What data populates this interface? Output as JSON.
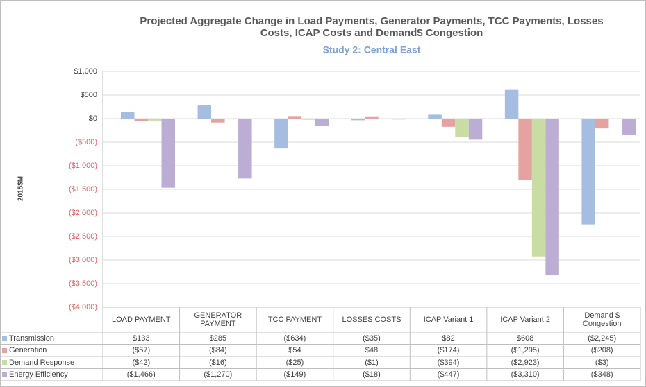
{
  "chart_data": {
    "type": "bar",
    "title": "Projected Aggregate Change in Load Payments, Generator Payments, TCC Payments, Losses Costs, ICAP Costs and Demand$ Congestion",
    "subtitle": "Study 2: Central East",
    "y_label": "2015$M",
    "categories": [
      "LOAD PAYMENT",
      "GENERATOR PAYMENT",
      "TCC PAYMENT",
      "LOSSES COSTS",
      "ICAP Variant 1",
      "ICAP Variant 2",
      "Demand $ Congestion"
    ],
    "series": [
      {
        "name": "Transmission",
        "color": "#a5bde0",
        "values": [
          133,
          285,
          -634,
          -35,
          82,
          608,
          -2245
        ],
        "value_labels": [
          "$133",
          "$285",
          "($634)",
          "($35)",
          "$82",
          "$608",
          "($2,245)"
        ]
      },
      {
        "name": "Generation",
        "color": "#e6a2a1",
        "values": [
          -57,
          -84,
          54,
          48,
          -174,
          -1295,
          -208
        ],
        "value_labels": [
          "($57)",
          "($84)",
          "$54",
          "$48",
          "($174)",
          "($1,295)",
          "($208)"
        ]
      },
      {
        "name": "Demand Response",
        "color": "#c8dca3",
        "values": [
          -42,
          -16,
          -25,
          -1,
          -394,
          -2923,
          -3
        ],
        "value_labels": [
          "($42)",
          "($16)",
          "($25)",
          "($1)",
          "($394)",
          "($2,923)",
          "($3)"
        ]
      },
      {
        "name": "Energy Efficiency",
        "color": "#bcadd4",
        "values": [
          -1466,
          -1270,
          -149,
          -18,
          -447,
          -3310,
          -348
        ],
        "value_labels": [
          "($1,466)",
          "($1,270)",
          "($149)",
          "($18)",
          "($447)",
          "($3,310)",
          "($348)"
        ]
      }
    ],
    "ylim": [
      -4000,
      1000
    ],
    "yticks": [
      {
        "value": 1000,
        "label": "$1,000"
      },
      {
        "value": 500,
        "label": "$500"
      },
      {
        "value": 0,
        "label": "$0"
      },
      {
        "value": -500,
        "label": "($500)"
      },
      {
        "value": -1000,
        "label": "($1,000)"
      },
      {
        "value": -1500,
        "label": "($1,500)"
      },
      {
        "value": -2000,
        "label": "($2,000)"
      },
      {
        "value": -2500,
        "label": "($2,500)"
      },
      {
        "value": -3000,
        "label": "($3,000)"
      },
      {
        "value": -3500,
        "label": "($3,500)"
      },
      {
        "value": -4000,
        "label": "($4,000)"
      }
    ],
    "grid": true,
    "negative_tick_color": "#e06060"
  }
}
